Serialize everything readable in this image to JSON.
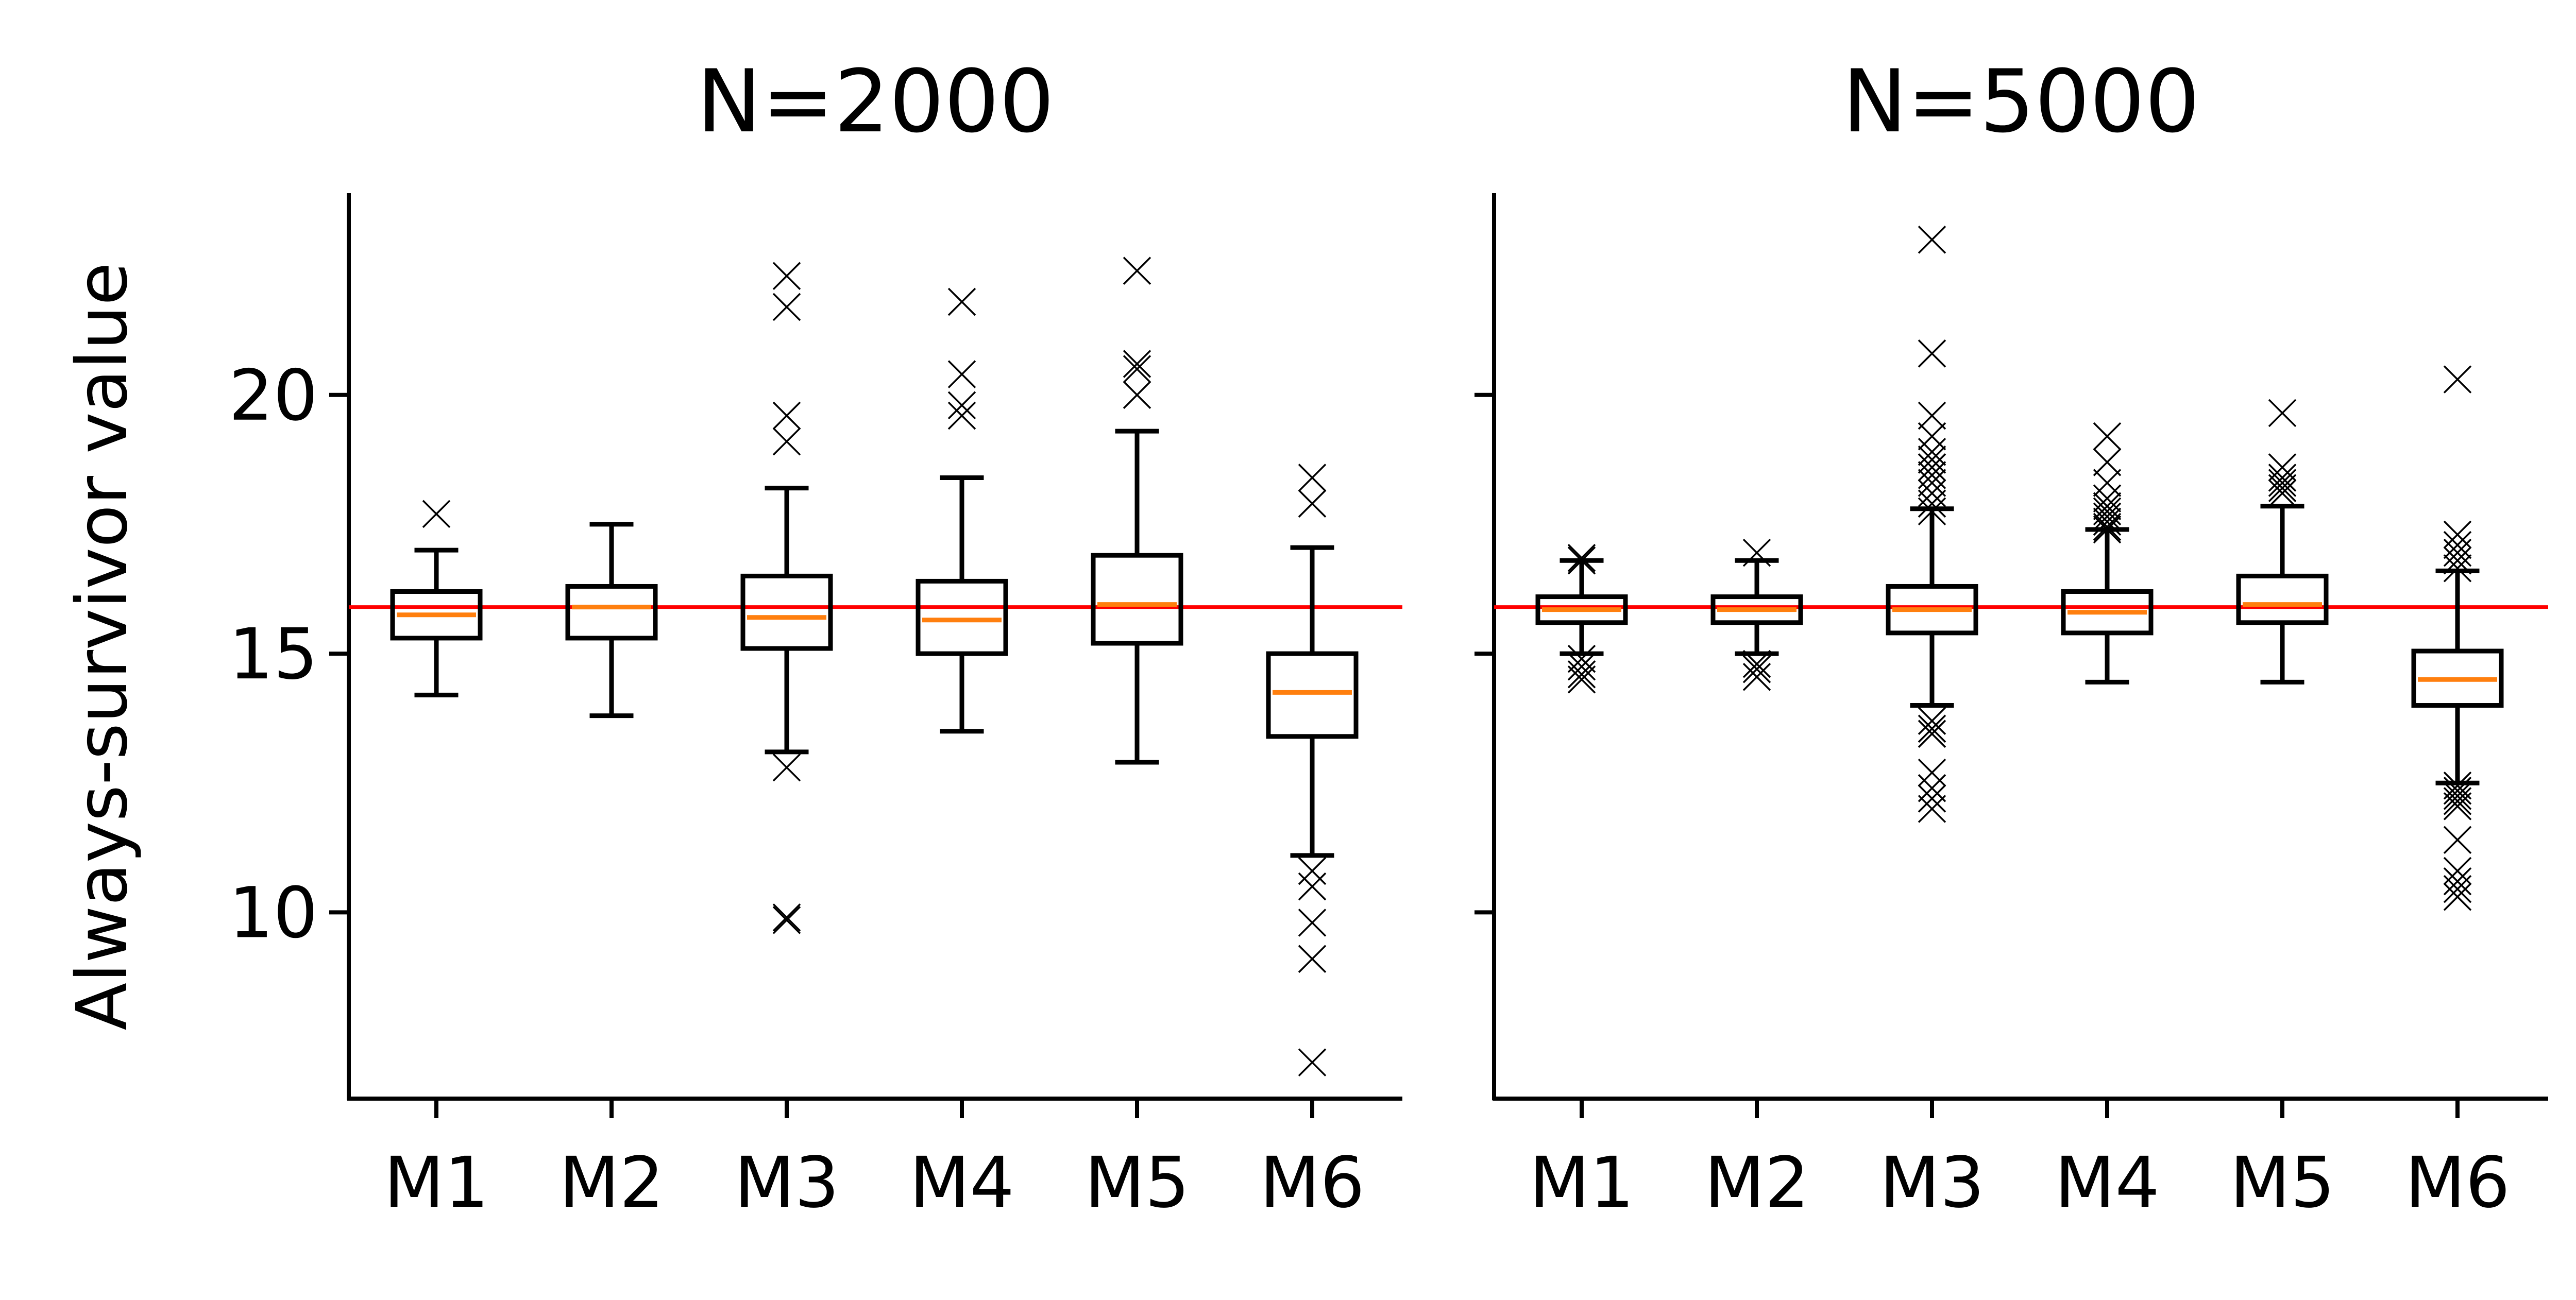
{
  "chart_data": {
    "type": "box",
    "ylabel": "Always-survivor value",
    "ylim": [
      6.4,
      23.9
    ],
    "yticks": [
      10,
      15,
      20
    ],
    "shared_y": true,
    "reference_line": {
      "y": 15.9,
      "color": "#ff0000"
    },
    "colors": {
      "box": "#000000",
      "median": "#ff7f0e",
      "outlier": "#000000"
    },
    "panels": [
      {
        "title": "N=2000",
        "categories": [
          "M1",
          "M2",
          "M3",
          "M4",
          "M5",
          "M6"
        ],
        "boxes": [
          {
            "label": "M1",
            "whislo": 14.2,
            "q1": 15.3,
            "med": 15.75,
            "q3": 16.2,
            "whishi": 17.0,
            "fliers": [
              17.7
            ]
          },
          {
            "label": "M2",
            "whislo": 13.8,
            "q1": 15.3,
            "med": 15.9,
            "q3": 16.3,
            "whishi": 17.5,
            "fliers": []
          },
          {
            "label": "M3",
            "whislo": 13.1,
            "q1": 15.1,
            "med": 15.7,
            "q3": 16.5,
            "whishi": 18.2,
            "fliers": [
              22.3,
              21.7,
              19.6,
              19.1,
              12.8,
              9.9,
              9.85
            ]
          },
          {
            "label": "M4",
            "whislo": 13.5,
            "q1": 15.0,
            "med": 15.65,
            "q3": 16.4,
            "whishi": 18.4,
            "fliers": [
              21.8,
              20.4,
              19.8,
              19.6
            ]
          },
          {
            "label": "M5",
            "whislo": 12.9,
            "q1": 15.2,
            "med": 15.95,
            "q3": 16.9,
            "whishi": 19.3,
            "fliers": [
              22.4,
              20.6,
              20.5,
              20.0
            ]
          },
          {
            "label": "M6",
            "whislo": 11.1,
            "q1": 13.4,
            "med": 14.25,
            "q3": 15.0,
            "whishi": 17.05,
            "fliers": [
              18.4,
              17.9,
              10.8,
              10.5,
              9.8,
              9.1,
              7.1
            ]
          }
        ]
      },
      {
        "title": "N=5000",
        "categories": [
          "M1",
          "M2",
          "M3",
          "M4",
          "M5",
          "M6"
        ],
        "boxes": [
          {
            "label": "M1",
            "whislo": 15.0,
            "q1": 15.6,
            "med": 15.85,
            "q3": 16.1,
            "whishi": 16.8,
            "fliers": [
              16.85,
              16.8,
              14.9,
              14.75,
              14.6,
              14.5
            ]
          },
          {
            "label": "M2",
            "whislo": 15.0,
            "q1": 15.6,
            "med": 15.85,
            "q3": 16.1,
            "whishi": 16.8,
            "fliers": [
              16.95,
              14.8,
              14.7,
              14.55
            ]
          },
          {
            "label": "M3",
            "whislo": 14.0,
            "q1": 15.4,
            "med": 15.85,
            "q3": 16.3,
            "whishi": 17.8,
            "fliers": [
              23.0,
              20.8,
              19.6,
              19.2,
              18.9,
              18.75,
              18.6,
              18.45,
              18.3,
              18.1,
              17.9,
              17.75,
              13.7,
              13.55,
              13.45,
              12.7,
              12.4,
              12.2,
              12.0
            ]
          },
          {
            "label": "M4",
            "whislo": 14.45,
            "q1": 15.4,
            "med": 15.8,
            "q3": 16.2,
            "whishi": 17.4,
            "fliers": [
              19.2,
              18.7,
              18.3,
              18.0,
              17.85,
              17.75,
              17.65,
              17.55,
              17.45,
              17.4
            ]
          },
          {
            "label": "M5",
            "whislo": 14.45,
            "q1": 15.6,
            "med": 15.95,
            "q3": 16.5,
            "whishi": 17.85,
            "fliers": [
              19.65,
              18.6,
              18.4,
              18.3,
              18.2,
              18.1
            ]
          },
          {
            "label": "M6",
            "whislo": 12.5,
            "q1": 14.0,
            "med": 14.5,
            "q3": 15.05,
            "whishi": 16.6,
            "fliers": [
              20.3,
              17.3,
              17.1,
              16.95,
              16.8,
              16.65,
              12.45,
              12.35,
              12.25,
              12.15,
              12.05,
              11.4,
              10.8,
              10.6,
              10.45,
              10.3
            ]
          }
        ]
      }
    ]
  }
}
